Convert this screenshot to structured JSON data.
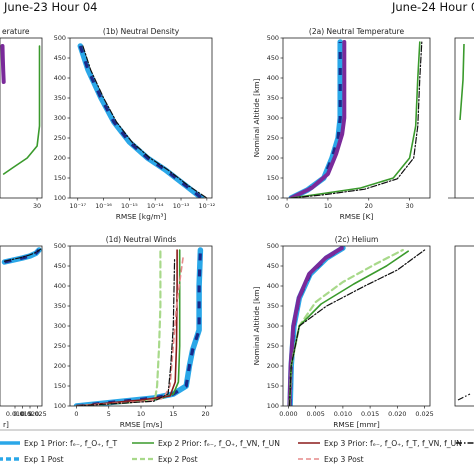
{
  "headers": {
    "left": "June-23 Hour 04",
    "right": "June-24 Hour 0"
  },
  "legend": [
    {
      "label": "Exp 1 Prior: fₑ₋, f_O₊, f_T",
      "color": "#2aa7e8",
      "dash": "solid",
      "width": 3.5
    },
    {
      "label": "Exp 2 Prior: fₑ₋, f_O₊, f_VN, f_UN",
      "color": "#3a9a2c",
      "dash": "solid",
      "width": 1.6
    },
    {
      "label": "Exp 3 Prior: fₑ₋, f_O₊, f_T, f_VN, f_UN",
      "color": "#8b1a1a",
      "dash": "solid",
      "width": 1.6
    },
    {
      "label": "Exp 1 Post",
      "color": "#2aa7e8",
      "dash": "dashed",
      "width": 3.5
    },
    {
      "label": "Exp 2 Post",
      "color": "#a8d98a",
      "dash": "dashed",
      "width": 2.2
    },
    {
      "label": "Exp 3 Post",
      "color": "#e58a8a",
      "dash": "dashed",
      "width": 1.6
    }
  ],
  "legend_colors": {
    "exp1": "#2aa7e8",
    "exp1_post": "#1a2a8a",
    "exp2": "#3a9a2c",
    "exp2_post": "#a8d98a",
    "exp3": "#8b1a1a",
    "exp3_post": "#e58a8a",
    "purple": "#7a2a9a",
    "ref": "#111111"
  },
  "chart_data": [
    {
      "id": "1a",
      "type": "line",
      "title": "erature",
      "xlabel": "",
      "ylabel": "",
      "xticks": [
        "30"
      ],
      "yticks": [],
      "series": [
        {
          "name": "purple",
          "x": [
            2,
            2.3,
            2.6,
            3.0
          ],
          "y": [
            480,
            450,
            420,
            390
          ]
        },
        {
          "name": "green",
          "x": [
            3,
            10,
            22,
            30,
            32,
            32,
            32
          ],
          "y": [
            160,
            175,
            200,
            230,
            280,
            400,
            480
          ]
        }
      ]
    },
    {
      "id": "1b",
      "type": "line",
      "title": "(1b) Neutral Density",
      "xlabel": "RMSE [kg/m³]",
      "ylabel": "",
      "xscale": "log",
      "xticks": [
        "10⁻¹⁷",
        "10⁻¹⁶",
        "10⁻¹⁵",
        "10⁻¹⁴",
        "10⁻¹³",
        "10⁻¹²"
      ],
      "yticks": [
        "100",
        "150",
        "200",
        "250",
        "300",
        "350",
        "400",
        "450",
        "500"
      ],
      "ylim": [
        100,
        500
      ],
      "series": [
        {
          "name": "blue",
          "x": [
            -16.9,
            -16.6,
            -16.1,
            -15.6,
            -15.0,
            -14.3,
            -13.6,
            -12.8,
            -12.2
          ],
          "y": [
            480,
            420,
            350,
            290,
            240,
            200,
            170,
            130,
            100
          ]
        },
        {
          "name": "ref",
          "x": [
            -16.8,
            -16.5,
            -16.0,
            -15.5,
            -14.9,
            -14.2,
            -13.5,
            -12.7,
            -12.0
          ],
          "y": [
            480,
            420,
            350,
            290,
            240,
            200,
            170,
            130,
            100
          ]
        }
      ]
    },
    {
      "id": "1d",
      "type": "line",
      "title": "(1d) Neutral Winds",
      "xlabel": "RMSE [m/s]",
      "ylabel": "",
      "xticks": [
        "0",
        "5",
        "10",
        "15",
        "20"
      ],
      "yticks": [
        "100",
        "150",
        "200",
        "250",
        "300",
        "350",
        "400",
        "450",
        "500"
      ],
      "xlim": [
        -1,
        21
      ],
      "ylim": [
        100,
        500
      ],
      "series": [
        {
          "name": "blue",
          "x": [
            0,
            6,
            12,
            15,
            17,
            17.5,
            18,
            19,
            19,
            19.2
          ],
          "y": [
            100,
            110,
            120,
            130,
            150,
            200,
            240,
            290,
            400,
            490
          ]
        },
        {
          "name": "green",
          "x": [
            0,
            8,
            13,
            15,
            15.8,
            16,
            16,
            16
          ],
          "y": [
            100,
            108,
            118,
            130,
            160,
            250,
            400,
            490
          ]
        },
        {
          "name": "light-green",
          "x": [
            0,
            10,
            12.2,
            12.5,
            12.8,
            13,
            13,
            13
          ],
          "y": [
            100,
            112,
            120,
            150,
            250,
            350,
            450,
            490
          ]
        },
        {
          "name": "darkred",
          "x": [
            0,
            10,
            14.5,
            15.3,
            15.5,
            15.6,
            15.6
          ],
          "y": [
            100,
            115,
            125,
            160,
            250,
            400,
            490
          ]
        },
        {
          "name": "pink",
          "x": [
            0,
            11,
            13.5,
            14.5,
            15,
            15.5,
            16.5
          ],
          "y": [
            100,
            112,
            120,
            150,
            250,
            350,
            470
          ]
        },
        {
          "name": "ref",
          "x": [
            0,
            12,
            14.2,
            14.6,
            15,
            15.2
          ],
          "y": [
            100,
            112,
            130,
            200,
            300,
            470
          ]
        }
      ]
    },
    {
      "id": "1c",
      "type": "line",
      "title": "",
      "xlabel": "r]",
      "ylabel": "",
      "xticks": [
        "0.010",
        "0.015",
        "0.020",
        "0.025"
      ],
      "yticks": [],
      "series": [
        {
          "name": "blue",
          "x": [
            0.003,
            0.015,
            0.02,
            0.024,
            0.026
          ],
          "y": [
            460,
            470,
            475,
            482,
            490
          ]
        },
        {
          "name": "ref",
          "x": [
            0.003,
            0.015,
            0.02,
            0.024,
            0.027
          ],
          "y": [
            462,
            472,
            478,
            484,
            492
          ]
        }
      ]
    },
    {
      "id": "2a",
      "type": "line",
      "title": "(2a) Neutral Temperature",
      "xlabel": "RMSE [K]",
      "ylabel": "Nominal Altitide [km]",
      "xticks": [
        "0",
        "10",
        "20",
        "30"
      ],
      "yticks": [
        "100",
        "150",
        "200",
        "250",
        "300",
        "350",
        "400",
        "450",
        "500"
      ],
      "xlim": [
        -1,
        35
      ],
      "ylim": [
        100,
        500
      ],
      "series": [
        {
          "name": "blue",
          "x": [
            1,
            5,
            9,
            11,
            12.5,
            13,
            13,
            13
          ],
          "y": [
            100,
            120,
            150,
            200,
            250,
            300,
            400,
            490
          ]
        },
        {
          "name": "purple",
          "x": [
            1,
            6,
            10,
            12,
            13.5,
            14,
            14,
            14
          ],
          "y": [
            100,
            125,
            160,
            210,
            260,
            300,
            400,
            490
          ]
        },
        {
          "name": "green",
          "x": [
            1,
            8,
            18,
            26,
            30,
            31.5,
            32,
            32.5
          ],
          "y": [
            100,
            110,
            125,
            150,
            200,
            280,
            400,
            490
          ]
        },
        {
          "name": "ref",
          "x": [
            1,
            9,
            19,
            27,
            31,
            32,
            32.5,
            33
          ],
          "y": [
            100,
            108,
            122,
            148,
            200,
            280,
            400,
            490
          ]
        }
      ]
    },
    {
      "id": "2c",
      "type": "line",
      "title": "(2c) Helium",
      "xlabel": "RMSE [mmr]",
      "ylabel": "Nominal Altitide [km]",
      "xticks": [
        "0.000",
        "0.005",
        "0.010",
        "0.015",
        "0.020",
        "0.025"
      ],
      "yticks": [
        "100",
        "150",
        "200",
        "250",
        "300",
        "350",
        "400",
        "450",
        "500"
      ],
      "xlim": [
        -0.001,
        0.026
      ],
      "ylim": [
        100,
        500
      ],
      "series": [
        {
          "name": "blue",
          "x": [
            0.0003,
            0.0005,
            0.001,
            0.002,
            0.004,
            0.007,
            0.01
          ],
          "y": [
            100,
            200,
            300,
            370,
            430,
            470,
            495
          ]
        },
        {
          "name": "purple",
          "x": [
            0.0002,
            0.0004,
            0.0009,
            0.0019,
            0.0038,
            0.0068,
            0.0098
          ],
          "y": [
            100,
            200,
            300,
            370,
            430,
            470,
            495
          ]
        },
        {
          "name": "light-green",
          "x": [
            0.0002,
            0.0005,
            0.002,
            0.005,
            0.01,
            0.016,
            0.021
          ],
          "y": [
            100,
            200,
            300,
            360,
            410,
            455,
            490
          ]
        },
        {
          "name": "green",
          "x": [
            0.0002,
            0.0005,
            0.002,
            0.006,
            0.012,
            0.018,
            0.022
          ],
          "y": [
            100,
            200,
            300,
            355,
            405,
            450,
            487
          ]
        },
        {
          "name": "ref",
          "x": [
            0.0002,
            0.0005,
            0.002,
            0.007,
            0.014,
            0.02,
            0.025
          ],
          "y": [
            100,
            200,
            300,
            350,
            400,
            440,
            490
          ]
        }
      ]
    }
  ]
}
